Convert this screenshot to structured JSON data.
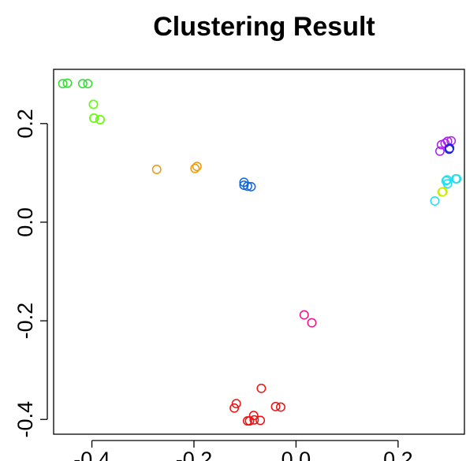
{
  "chart_data": {
    "type": "scatter",
    "title": "Clustering Result",
    "xlabel": "",
    "ylabel": "",
    "xlim": [
      -0.475,
      0.33
    ],
    "ylim": [
      -0.43,
      0.31
    ],
    "x_ticks": [
      -0.4,
      -0.2,
      0.0,
      0.2
    ],
    "x_tick_labels": [
      "-0.4",
      "-0.2",
      "0.0",
      "0.2"
    ],
    "y_ticks": [
      -0.4,
      -0.2,
      0.0,
      0.2
    ],
    "y_tick_labels": [
      "-0.4",
      "-0.2",
      "0.0",
      "0.2"
    ],
    "grid": false,
    "legend": "none",
    "marker": "open-circle",
    "series": [
      {
        "color": "#33dd33",
        "points": [
          [
            -0.457,
            0.281
          ],
          [
            -0.448,
            0.282
          ],
          [
            -0.418,
            0.281
          ],
          [
            -0.408,
            0.281
          ],
          [
            -0.397,
            0.239
          ],
          [
            -0.396,
            0.211
          ],
          [
            -0.384,
            0.208
          ]
        ]
      },
      {
        "color": "#66ff00",
        "points": [
          [
            -0.397,
            0.239
          ],
          [
            -0.396,
            0.211
          ],
          [
            -0.384,
            0.208
          ]
        ]
      },
      {
        "color": "#ee9911",
        "points": [
          [
            -0.273,
            0.107
          ],
          [
            -0.198,
            0.109
          ],
          [
            -0.194,
            0.113
          ]
        ]
      },
      {
        "color": "#1166dd",
        "points": [
          [
            -0.102,
            0.081
          ],
          [
            -0.102,
            0.075
          ],
          [
            -0.095,
            0.073
          ],
          [
            -0.088,
            0.072
          ]
        ]
      },
      {
        "color": "#ee1188",
        "points": [
          [
            0.016,
            -0.188
          ],
          [
            0.031,
            -0.204
          ]
        ]
      },
      {
        "color": "#ee1111",
        "points": [
          [
            -0.068,
            -0.337
          ],
          [
            -0.117,
            -0.368
          ],
          [
            -0.121,
            -0.377
          ],
          [
            -0.04,
            -0.374
          ],
          [
            -0.03,
            -0.375
          ],
          [
            -0.083,
            -0.392
          ],
          [
            -0.095,
            -0.403
          ],
          [
            -0.091,
            -0.403
          ],
          [
            -0.082,
            -0.401
          ],
          [
            -0.07,
            -0.402
          ]
        ]
      },
      {
        "color": "#aa22ee",
        "points": [
          [
            0.282,
            0.144
          ],
          [
            0.285,
            0.157
          ],
          [
            0.292,
            0.16
          ],
          [
            0.297,
            0.164
          ],
          [
            0.304,
            0.165
          ]
        ]
      },
      {
        "color": "#2222dd",
        "points": [
          [
            0.3,
            0.148
          ],
          [
            0.301,
            0.15
          ]
        ]
      },
      {
        "color": "#22ddee",
        "points": [
          [
            0.294,
            0.084
          ],
          [
            0.296,
            0.086
          ],
          [
            0.297,
            0.078
          ],
          [
            0.313,
            0.088
          ],
          [
            0.315,
            0.088
          ],
          [
            0.272,
            0.043
          ]
        ]
      },
      {
        "color": "#ccee00",
        "points": [
          [
            0.286,
            0.061
          ],
          [
            0.288,
            0.062
          ]
        ]
      }
    ]
  }
}
